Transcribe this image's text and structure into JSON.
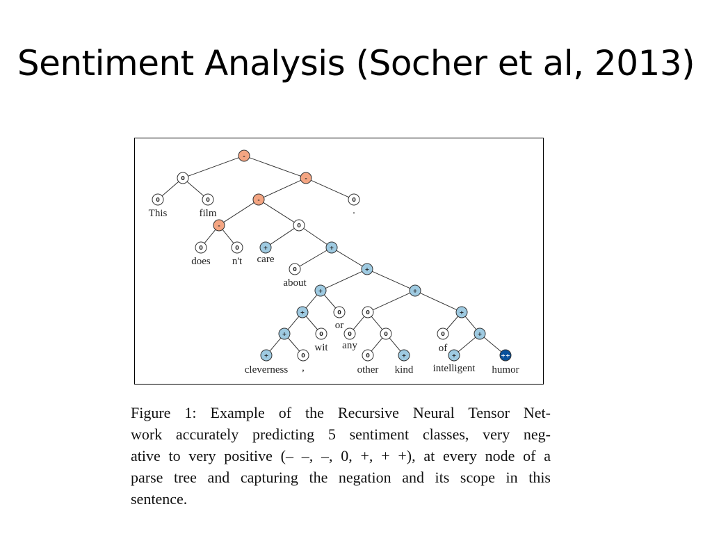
{
  "slide": {
    "title": "Sentiment Analysis (Socher et al, 2013)"
  },
  "figure": {
    "colors": {
      "very_negative": "#d7301f",
      "negative": "#f4a582",
      "neutral": "#ffffff",
      "positive": "#9ecae1",
      "very_positive": "#08519c"
    },
    "node_symbols": {
      "negative": "-",
      "neutral": "0",
      "positive": "+",
      "very_positive": "++"
    },
    "nodes": [
      {
        "id": "root",
        "sentiment": "negative"
      },
      {
        "id": "n_thisfilm",
        "sentiment": "neutral"
      },
      {
        "id": "n_rest",
        "sentiment": "negative"
      },
      {
        "id": "w_this",
        "sentiment": "neutral",
        "word": "This"
      },
      {
        "id": "w_film",
        "sentiment": "neutral",
        "word": "film"
      },
      {
        "id": "n_pred",
        "sentiment": "negative"
      },
      {
        "id": "w_period",
        "sentiment": "neutral",
        "word": "."
      },
      {
        "id": "n_doesnt",
        "sentiment": "negative"
      },
      {
        "id": "n_care_about",
        "sentiment": "neutral"
      },
      {
        "id": "w_does",
        "sentiment": "neutral",
        "word": "does"
      },
      {
        "id": "w_nt",
        "sentiment": "neutral",
        "word": "n't"
      },
      {
        "id": "w_care",
        "sentiment": "positive",
        "word": "care"
      },
      {
        "id": "n_about_obj",
        "sentiment": "positive"
      },
      {
        "id": "w_about",
        "sentiment": "neutral",
        "word": "about"
      },
      {
        "id": "n_obj",
        "sentiment": "positive"
      },
      {
        "id": "n_left",
        "sentiment": "positive"
      },
      {
        "id": "n_right",
        "sentiment": "positive"
      },
      {
        "id": "n_cwit",
        "sentiment": "positive"
      },
      {
        "id": "w_or",
        "sentiment": "neutral",
        "word": "or"
      },
      {
        "id": "n_anyother",
        "sentiment": "neutral"
      },
      {
        "id": "n_ofih",
        "sentiment": "positive"
      },
      {
        "id": "n_cc",
        "sentiment": "positive"
      },
      {
        "id": "w_wit",
        "sentiment": "neutral",
        "word": "wit"
      },
      {
        "id": "w_any",
        "sentiment": "neutral",
        "word": "any"
      },
      {
        "id": "n_otherkind",
        "sentiment": "neutral"
      },
      {
        "id": "w_of",
        "sentiment": "neutral",
        "word": "of"
      },
      {
        "id": "n_ih",
        "sentiment": "positive"
      },
      {
        "id": "w_cleverness",
        "sentiment": "positive",
        "word": "cleverness"
      },
      {
        "id": "w_comma",
        "sentiment": "neutral",
        "word": ","
      },
      {
        "id": "w_other",
        "sentiment": "neutral",
        "word": "other"
      },
      {
        "id": "w_kind",
        "sentiment": "positive",
        "word": "kind"
      },
      {
        "id": "w_intelligent",
        "sentiment": "positive",
        "word": "intelligent"
      },
      {
        "id": "w_humor",
        "sentiment": "very_positive",
        "word": "humor"
      }
    ],
    "edges": [
      [
        "root",
        "n_thisfilm"
      ],
      [
        "root",
        "n_rest"
      ],
      [
        "n_thisfilm",
        "w_this"
      ],
      [
        "n_thisfilm",
        "w_film"
      ],
      [
        "n_rest",
        "n_pred"
      ],
      [
        "n_rest",
        "w_period"
      ],
      [
        "n_pred",
        "n_doesnt"
      ],
      [
        "n_pred",
        "n_care_about"
      ],
      [
        "n_doesnt",
        "w_does"
      ],
      [
        "n_doesnt",
        "w_nt"
      ],
      [
        "n_care_about",
        "w_care"
      ],
      [
        "n_care_about",
        "n_about_obj"
      ],
      [
        "n_about_obj",
        "w_about"
      ],
      [
        "n_about_obj",
        "n_obj"
      ],
      [
        "n_obj",
        "n_left"
      ],
      [
        "n_obj",
        "n_right"
      ],
      [
        "n_left",
        "n_cwit"
      ],
      [
        "n_left",
        "w_or"
      ],
      [
        "n_right",
        "n_anyother"
      ],
      [
        "n_right",
        "n_ofih"
      ],
      [
        "n_cwit",
        "n_cc"
      ],
      [
        "n_cwit",
        "w_wit"
      ],
      [
        "n_anyother",
        "w_any"
      ],
      [
        "n_anyother",
        "n_otherkind"
      ],
      [
        "n_ofih",
        "w_of"
      ],
      [
        "n_ofih",
        "n_ih"
      ],
      [
        "n_cc",
        "w_cleverness"
      ],
      [
        "n_cc",
        "w_comma"
      ],
      [
        "n_otherkind",
        "w_other"
      ],
      [
        "n_otherkind",
        "w_kind"
      ],
      [
        "n_ih",
        "w_intelligent"
      ],
      [
        "n_ih",
        "w_humor"
      ]
    ]
  },
  "caption": {
    "lines": [
      "Figure 1: Example of the Recursive Neural Tensor Net-",
      "work accurately predicting 5 sentiment classes, very neg-",
      "ative to very positive (– –, –, 0, +, + +), at every node of a",
      "parse tree and capturing the negation and its scope in this",
      "sentence."
    ]
  }
}
